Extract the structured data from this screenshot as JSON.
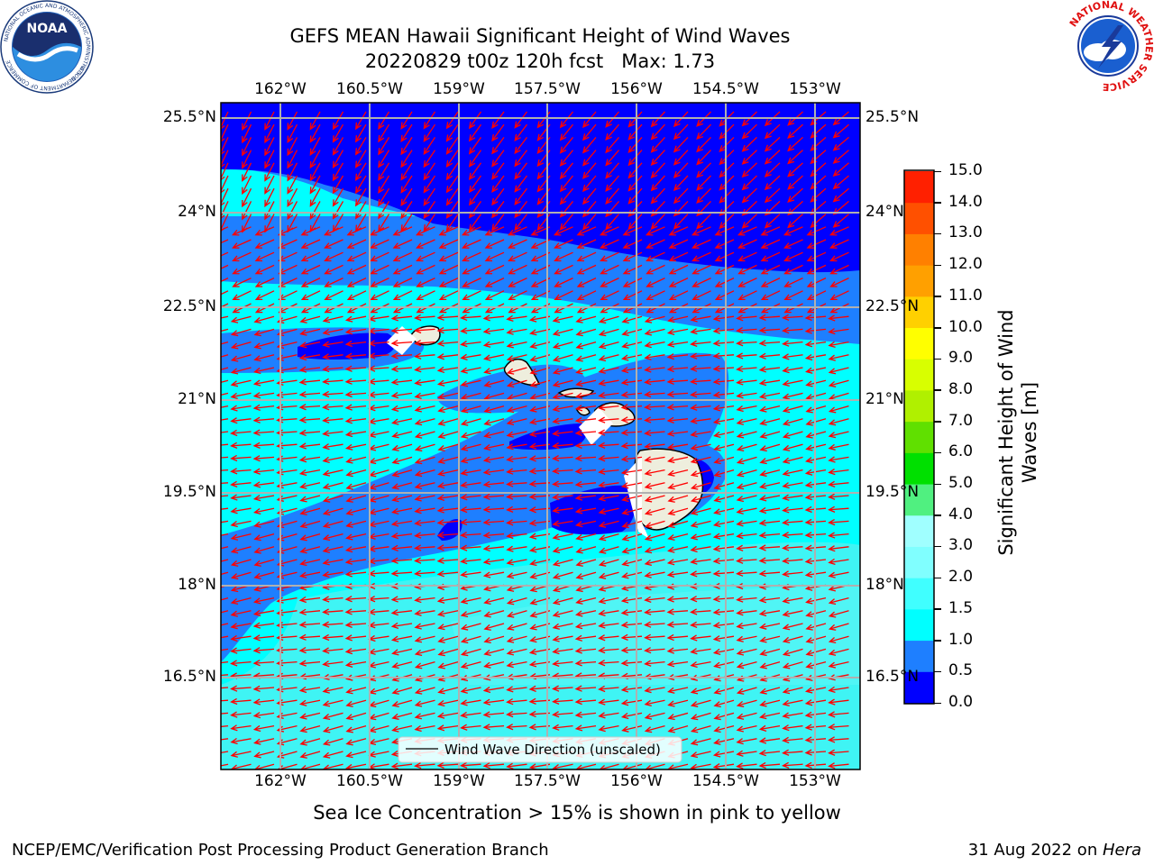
{
  "title": {
    "line1": "GEFS MEAN Hawaii Significant Height of Wind Waves",
    "line2": "20220829 t00z 120h fcst   Max: 1.73"
  },
  "logos": {
    "noaa_text": "NOAA",
    "noaa_ring": "NATIONAL OCEANIC AND ATMOSPHERIC ADMINISTRATION",
    "noaa_ring_bottom": "U.S. DEPARTMENT OF COMMERCE",
    "nws_ring": "NATIONAL WEATHER SERVICE"
  },
  "map": {
    "lon_labels": [
      "162°W",
      "160.5°W",
      "159°W",
      "157.5°W",
      "156°W",
      "154.5°W",
      "153°W"
    ],
    "lat_labels": [
      "25.5°N",
      "24°N",
      "22.5°N",
      "21°N",
      "19.5°N",
      "18°N",
      "16.5°N"
    ],
    "legend_label": "Wind Wave Direction (unscaled)",
    "arrow_color": "#ff0000",
    "land_color": "#eeeedd",
    "grid_color": "#b0b0b0"
  },
  "colorbar": {
    "label_line1": "Significant Height of Wind",
    "label_line2": "Waves [m]",
    "ticks": [
      "0.0",
      "0.5",
      "1.0",
      "1.5",
      "2.0",
      "3.0",
      "4.0",
      "5.0",
      "6.0",
      "7.0",
      "8.0",
      "9.0",
      "10.0",
      "11.0",
      "12.0",
      "13.0",
      "14.0",
      "15.0"
    ],
    "colors": [
      "#0000ff",
      "#1e7fff",
      "#00ffff",
      "#40ffff",
      "#80ffff",
      "#a0ffff",
      "#50f080",
      "#00e000",
      "#60e000",
      "#b0f000",
      "#d8ff00",
      "#ffff00",
      "#ffd000",
      "#ffa000",
      "#ff8000",
      "#ff5000",
      "#ff2000"
    ]
  },
  "note": "Sea Ice Concentration > 15% is shown in pink to yellow",
  "footer": {
    "left": "NCEP/EMC/Verification Post Processing Product Generation Branch",
    "right_prefix": "31 Aug 2022 on ",
    "right_machine": "Hera"
  }
}
